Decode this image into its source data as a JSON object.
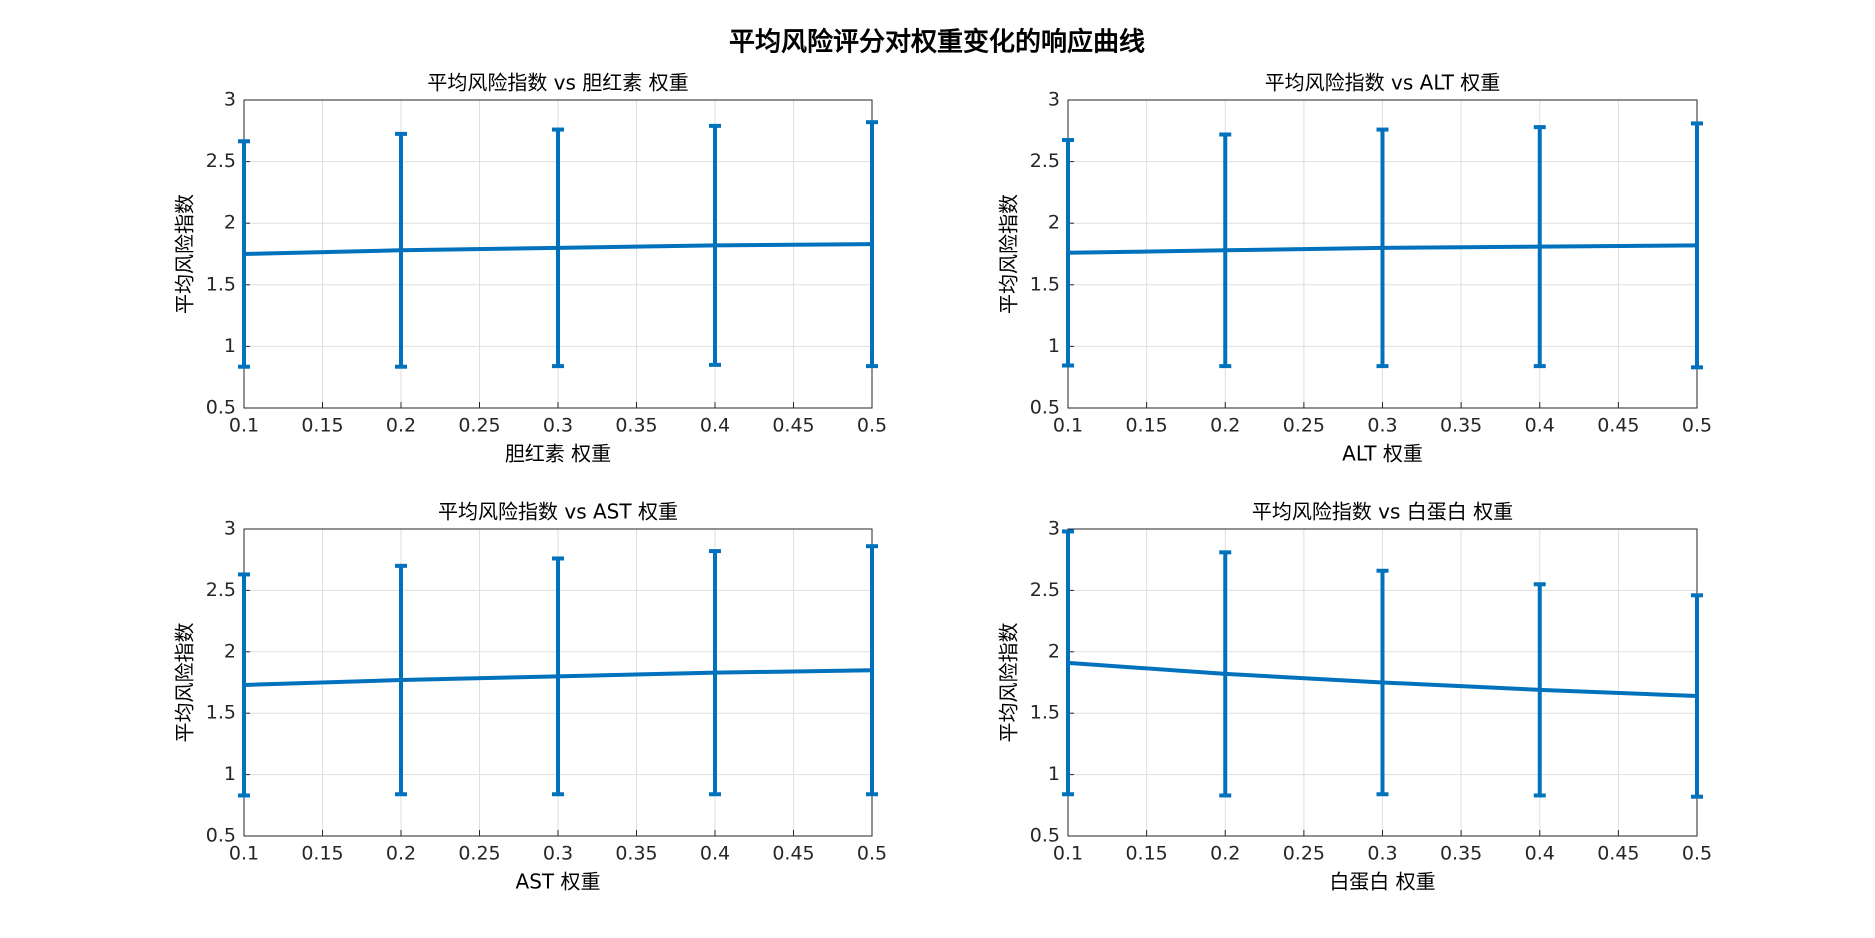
{
  "title": "平均风险评分对权重变化的响应曲线",
  "chart_data": [
    {
      "type": "line",
      "title": "平均风险指数 vs 胆红素 权重",
      "xlabel": "胆红素 权重",
      "ylabel": "平均风险指数",
      "x": [
        0.1,
        0.2,
        0.3,
        0.4,
        0.5
      ],
      "series": [
        {
          "color": "#0072bd",
          "values": [
            1.75,
            1.78,
            1.8,
            1.82,
            1.83
          ],
          "errors": [
            0.915,
            0.945,
            0.96,
            0.97,
            0.99
          ]
        }
      ],
      "xlim": [
        0.1,
        0.5
      ],
      "ylim": [
        0.5,
        3
      ],
      "xticks": [
        0.1,
        0.15,
        0.2,
        0.25,
        0.3,
        0.35,
        0.4,
        0.45,
        0.5
      ],
      "yticks": [
        0.5,
        1,
        1.5,
        2,
        2.5,
        3
      ],
      "grid": true
    },
    {
      "type": "line",
      "title": "平均风险指数 vs ALT 权重",
      "xlabel": "ALT 权重",
      "ylabel": "平均风险指数",
      "x": [
        0.1,
        0.2,
        0.3,
        0.4,
        0.5
      ],
      "series": [
        {
          "color": "#0072bd",
          "values": [
            1.76,
            1.78,
            1.8,
            1.81,
            1.82
          ],
          "errors": [
            0.915,
            0.94,
            0.96,
            0.97,
            0.99
          ]
        }
      ],
      "xlim": [
        0.1,
        0.5
      ],
      "ylim": [
        0.5,
        3
      ],
      "xticks": [
        0.1,
        0.15,
        0.2,
        0.25,
        0.3,
        0.35,
        0.4,
        0.45,
        0.5
      ],
      "yticks": [
        0.5,
        1,
        1.5,
        2,
        2.5,
        3
      ],
      "grid": true
    },
    {
      "type": "line",
      "title": "平均风险指数 vs AST 权重",
      "xlabel": "AST 权重",
      "ylabel": "平均风险指数",
      "x": [
        0.1,
        0.2,
        0.3,
        0.4,
        0.5
      ],
      "series": [
        {
          "color": "#0072bd",
          "values": [
            1.73,
            1.77,
            1.8,
            1.83,
            1.85
          ],
          "errors": [
            0.9,
            0.93,
            0.96,
            0.99,
            1.01
          ]
        }
      ],
      "xlim": [
        0.1,
        0.5
      ],
      "ylim": [
        0.5,
        3
      ],
      "xticks": [
        0.1,
        0.15,
        0.2,
        0.25,
        0.3,
        0.35,
        0.4,
        0.45,
        0.5
      ],
      "yticks": [
        0.5,
        1,
        1.5,
        2,
        2.5,
        3
      ],
      "grid": true
    },
    {
      "type": "line",
      "title": "平均风险指数 vs 白蛋白 权重",
      "xlabel": "白蛋白 权重",
      "ylabel": "平均风险指数",
      "x": [
        0.1,
        0.2,
        0.3,
        0.4,
        0.5
      ],
      "series": [
        {
          "color": "#0072bd",
          "values": [
            1.91,
            1.82,
            1.75,
            1.69,
            1.64
          ],
          "errors": [
            1.07,
            0.99,
            0.91,
            0.86,
            0.82
          ]
        }
      ],
      "xlim": [
        0.1,
        0.5
      ],
      "ylim": [
        0.5,
        3
      ],
      "xticks": [
        0.1,
        0.15,
        0.2,
        0.25,
        0.3,
        0.35,
        0.4,
        0.45,
        0.5
      ],
      "yticks": [
        0.5,
        1,
        1.5,
        2,
        2.5,
        3
      ],
      "grid": true
    }
  ]
}
